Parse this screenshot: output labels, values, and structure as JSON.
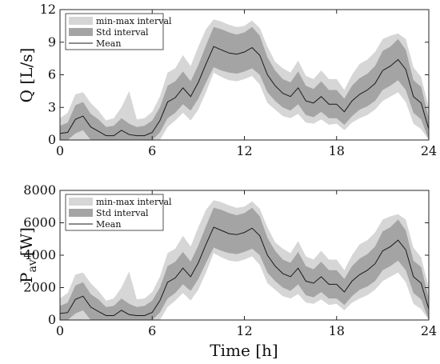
{
  "colors": {
    "minmax_fill": "#d6d6d6",
    "std_fill": "#a4a4a4",
    "mean_line": "#1a1a1a",
    "axes": "#262626",
    "background": "#ffffff"
  },
  "chart_data": [
    {
      "type": "area",
      "panel": "top",
      "ylabel": "Q [L/s]",
      "xlabel": "",
      "xlim": [
        0,
        24
      ],
      "ylim": [
        0,
        12
      ],
      "xticks": [
        0,
        6,
        12,
        18,
        24
      ],
      "yticks": [
        0,
        3,
        6,
        9,
        12
      ],
      "grid": false,
      "legend_position": "top-left",
      "legend": [
        "min-max interval",
        "Std interval",
        "Mean"
      ],
      "x": [
        0,
        0.5,
        1,
        1.5,
        2,
        2.5,
        3,
        3.5,
        4,
        4.5,
        5,
        5.5,
        6,
        6.5,
        7,
        7.5,
        8,
        8.5,
        9,
        9.5,
        10,
        10.5,
        11,
        11.5,
        12,
        12.5,
        13,
        13.5,
        14,
        14.5,
        15,
        15.5,
        16,
        16.5,
        17,
        17.5,
        18,
        18.5,
        19,
        19.5,
        20,
        20.5,
        21,
        21.5,
        22,
        22.5,
        23,
        23.5,
        24
      ],
      "series": [
        {
          "name": "Mean",
          "values": [
            0.6,
            0.7,
            1.9,
            2.2,
            1.2,
            0.8,
            0.4,
            0.4,
            0.9,
            0.5,
            0.4,
            0.4,
            0.7,
            1.8,
            3.5,
            3.9,
            4.8,
            4.0,
            5.3,
            7.0,
            8.6,
            8.3,
            8.0,
            7.9,
            8.1,
            8.5,
            7.8,
            6.0,
            5.0,
            4.3,
            4.0,
            4.8,
            3.6,
            3.4,
            4.0,
            3.3,
            3.3,
            2.6,
            3.6,
            4.2,
            4.6,
            5.2,
            6.4,
            6.8,
            7.4,
            6.5,
            4.0,
            3.4,
            1.0
          ]
        },
        {
          "name": "Std interval",
          "lower": [
            0,
            0,
            0.6,
            0.9,
            0,
            0,
            0,
            0,
            0,
            0,
            0,
            0,
            0,
            0.7,
            2.0,
            2.5,
            3.3,
            2.7,
            3.8,
            5.3,
            6.7,
            6.4,
            6.2,
            6.1,
            6.3,
            6.6,
            6.0,
            4.4,
            3.6,
            3.0,
            2.7,
            3.3,
            2.3,
            2.1,
            2.6,
            2.0,
            2.0,
            1.4,
            2.2,
            2.8,
            3.1,
            3.6,
            4.6,
            5.0,
            5.5,
            4.6,
            2.5,
            1.9,
            0
          ],
          "upper": [
            1.3,
            1.6,
            3.2,
            3.5,
            2.4,
            1.9,
            1.2,
            1.3,
            2.0,
            1.5,
            1.2,
            1.3,
            1.8,
            3.0,
            5.0,
            5.4,
            6.3,
            5.4,
            6.9,
            8.7,
            10.4,
            10.2,
            9.9,
            9.7,
            9.9,
            10.4,
            9.6,
            7.6,
            6.4,
            5.6,
            5.3,
            6.3,
            5.0,
            4.7,
            5.4,
            4.6,
            4.6,
            3.8,
            5.0,
            5.7,
            6.1,
            6.8,
            8.2,
            8.6,
            9.3,
            8.3,
            5.5,
            4.9,
            2.0
          ]
        },
        {
          "name": "min-max interval",
          "lower": [
            0,
            0,
            0,
            0,
            0,
            0,
            0,
            0,
            0,
            0,
            0,
            0,
            0,
            0,
            1.2,
            1.8,
            2.5,
            1.8,
            2.8,
            4.4,
            6.2,
            5.8,
            5.5,
            5.4,
            5.6,
            5.9,
            5.1,
            3.4,
            2.8,
            2.2,
            2.0,
            2.4,
            1.6,
            1.5,
            1.9,
            1.4,
            1.5,
            0.9,
            1.6,
            2.0,
            2.3,
            2.8,
            3.6,
            4.0,
            4.4,
            3.5,
            1.5,
            1.0,
            0
          ],
          "upper": [
            2.0,
            2.5,
            4.2,
            4.4,
            3.4,
            2.7,
            1.8,
            2.0,
            3.0,
            4.5,
            1.9,
            2.0,
            2.6,
            4.0,
            6.2,
            6.6,
            7.8,
            6.8,
            8.6,
            10.2,
            11.1,
            10.9,
            10.6,
            10.4,
            10.5,
            11.0,
            10.3,
            8.6,
            7.2,
            6.6,
            6.2,
            7.3,
            5.9,
            5.6,
            6.4,
            5.6,
            5.6,
            4.6,
            6.0,
            7.0,
            7.4,
            8.1,
            9.3,
            9.6,
            9.8,
            9.3,
            6.7,
            5.8,
            3.0
          ]
        }
      ]
    },
    {
      "type": "area",
      "panel": "bottom",
      "ylabel": "P_av [W]",
      "xlabel": "Time [h]",
      "xlim": [
        0,
        24
      ],
      "ylim": [
        0,
        8000
      ],
      "xticks": [
        0,
        6,
        12,
        18,
        24
      ],
      "yticks": [
        0,
        2000,
        4000,
        6000,
        8000
      ],
      "grid": false,
      "legend_position": "top-left",
      "legend": [
        "min-max interval",
        "Std interval",
        "Mean"
      ],
      "x": [
        0,
        0.5,
        1,
        1.5,
        2,
        2.5,
        3,
        3.5,
        4,
        4.5,
        5,
        5.5,
        6,
        6.5,
        7,
        7.5,
        8,
        8.5,
        9,
        9.5,
        10,
        10.5,
        11,
        11.5,
        12,
        12.5,
        13,
        13.5,
        14,
        14.5,
        15,
        15.5,
        16,
        16.5,
        17,
        17.5,
        18,
        18.5,
        19,
        19.5,
        20,
        20.5,
        21,
        21.5,
        22,
        22.5,
        23,
        23.5,
        24
      ],
      "series": [
        {
          "name": "Mean",
          "values": [
            400,
            460,
            1270,
            1470,
            800,
            530,
            270,
            270,
            600,
            330,
            270,
            270,
            470,
            1200,
            2330,
            2600,
            3200,
            2670,
            3530,
            4670,
            5730,
            5530,
            5330,
            5270,
            5400,
            5670,
            5200,
            4000,
            3330,
            2870,
            2670,
            3200,
            2400,
            2270,
            2670,
            2200,
            2200,
            1730,
            2400,
            2800,
            3070,
            3470,
            4270,
            4530,
            4930,
            4330,
            2670,
            2270,
            670
          ]
        },
        {
          "name": "Std interval",
          "lower": [
            0,
            0,
            400,
            600,
            0,
            0,
            0,
            0,
            0,
            0,
            0,
            0,
            0,
            470,
            1330,
            1670,
            2200,
            1800,
            2530,
            3530,
            4470,
            4270,
            4130,
            4070,
            4200,
            4400,
            4000,
            2930,
            2400,
            2000,
            1800,
            2200,
            1530,
            1400,
            1730,
            1330,
            1330,
            930,
            1470,
            1870,
            2070,
            2400,
            3070,
            3330,
            3670,
            3070,
            1670,
            1270,
            0
          ],
          "upper": [
            870,
            1070,
            2130,
            2330,
            1600,
            1270,
            800,
            870,
            1330,
            1000,
            800,
            870,
            1200,
            2000,
            3330,
            3600,
            4200,
            3600,
            4600,
            5800,
            6930,
            6800,
            6600,
            6470,
            6600,
            6930,
            6400,
            5070,
            4270,
            3730,
            3530,
            4200,
            3330,
            3130,
            3600,
            3070,
            3070,
            2530,
            3330,
            3800,
            4070,
            4530,
            5470,
            5730,
            6200,
            5530,
            3670,
            3270,
            1330
          ]
        },
        {
          "name": "min-max interval",
          "lower": [
            0,
            0,
            0,
            0,
            0,
            0,
            0,
            0,
            0,
            0,
            0,
            0,
            0,
            0,
            800,
            1200,
            1670,
            1200,
            1870,
            2930,
            4130,
            3870,
            3670,
            3600,
            3730,
            3930,
            3400,
            2270,
            1870,
            1470,
            1330,
            1600,
            1070,
            1000,
            1270,
            930,
            1000,
            600,
            1070,
            1330,
            1530,
            1870,
            2400,
            2670,
            2930,
            2330,
            1000,
            670,
            0
          ],
          "upper": [
            1330,
            1670,
            2800,
            2930,
            2270,
            1800,
            1200,
            1330,
            2000,
            3000,
            1270,
            1330,
            1730,
            2670,
            4130,
            4400,
            5200,
            4530,
            5730,
            6800,
            7400,
            7270,
            7070,
            6930,
            7000,
            7330,
            6870,
            5730,
            4800,
            4400,
            4130,
            4870,
            3930,
            3730,
            4270,
            3730,
            3730,
            3070,
            4000,
            4670,
            4930,
            5400,
            6200,
            6400,
            6530,
            6200,
            4470,
            3870,
            2000
          ]
        }
      ]
    }
  ],
  "labels": {
    "top_ylabel_main": "Q [L/s]",
    "bottom_ylabel_main": "P",
    "bottom_ylabel_sub": "av",
    "bottom_ylabel_unit": "[W]",
    "xlabel": "Time [h]",
    "legend_minmax": "min-max interval",
    "legend_std": "Std interval",
    "legend_mean": "Mean"
  }
}
